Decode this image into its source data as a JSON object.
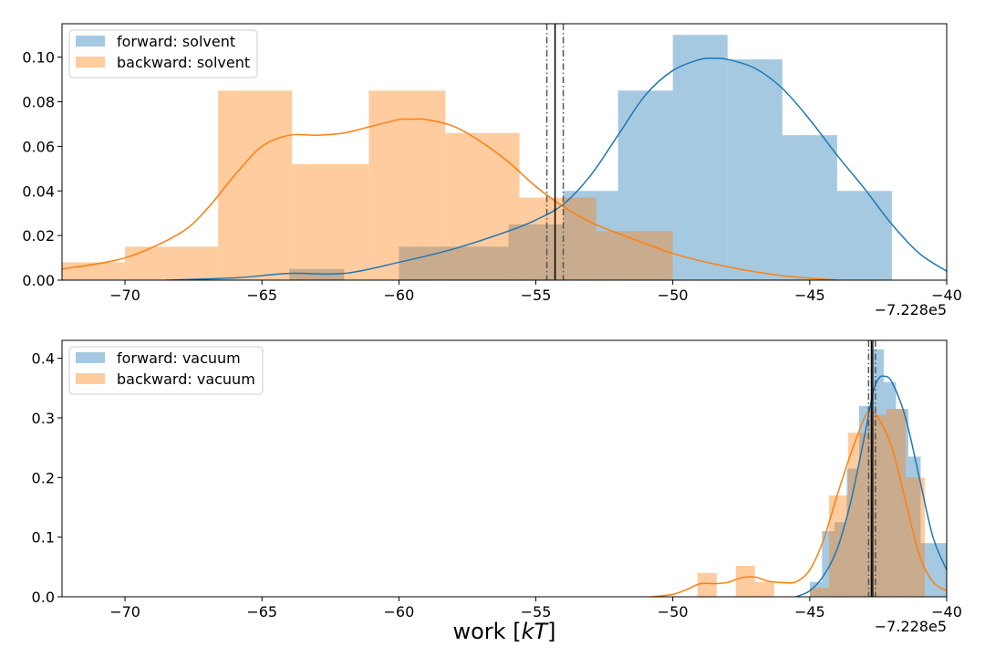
{
  "xlabel": "work [kT]",
  "chart_data": [
    {
      "type": "histogram",
      "xlim": [
        -72.3,
        -40
      ],
      "ylim": [
        0,
        0.115
      ],
      "x_offset_label": "−7.228e5",
      "x_ticks": [
        -70,
        -65,
        -60,
        -55,
        -50,
        -45,
        -40
      ],
      "x_tick_labels": [
        "−70",
        "−65",
        "−60",
        "−55",
        "−50",
        "−45",
        "−40"
      ],
      "y_ticks": [
        0,
        0.02,
        0.04,
        0.06,
        0.08,
        0.1
      ],
      "y_tick_labels": [
        "0.00",
        "0.02",
        "0.04",
        "0.06",
        "0.08",
        "0.10"
      ],
      "legend_position": "upper-left",
      "vlines": {
        "forward_mean": -54.3,
        "backward_mean": -54.3,
        "forward_mean_ci": [
          -54.6,
          -54.0
        ],
        "backward_mean_ci": [
          -54.6,
          -54.0
        ]
      },
      "series": [
        {
          "name": "forward: solvent",
          "color": "#1f77b4",
          "hist_color": "#a6c7e1",
          "bin_edges": [
            -64.0,
            -62.0,
            -60.0,
            -58.0,
            -56.0,
            -54.0,
            -52.0,
            -50.0,
            -48.0,
            -46.0,
            -44.0,
            -42.0
          ],
          "bin_values": [
            0.005,
            0.0,
            0.015,
            0.015,
            0.025,
            0.04,
            0.085,
            0.11,
            0.099,
            0.065,
            0.04
          ],
          "kde": {
            "x": [
              -68.5,
              -66,
              -64,
              -62,
              -60,
              -58,
              -56,
              -55,
              -54,
              -53,
              -52,
              -51,
              -50,
              -49,
              -48.5,
              -48,
              -47,
              -46,
              -45,
              -44,
              -43,
              -42,
              -41,
              -40
            ],
            "y": [
              0,
              0.001,
              0.003,
              0.003,
              0.008,
              0.014,
              0.022,
              0.027,
              0.034,
              0.047,
              0.065,
              0.083,
              0.094,
              0.099,
              0.0995,
              0.099,
              0.095,
              0.086,
              0.072,
              0.056,
              0.041,
              0.025,
              0.012,
              0.004
            ]
          }
        },
        {
          "name": "backward: solvent",
          "color": "#ff7f0e",
          "hist_color": "#ffc898",
          "bin_edges": [
            -72.8,
            -70.0,
            -66.6,
            -63.9,
            -61.1,
            -58.3,
            -55.6,
            -52.8,
            -50.0
          ],
          "bin_values": [
            0.008,
            0.015,
            0.085,
            0.052,
            0.085,
            0.066,
            0.037,
            0.022
          ],
          "kde": {
            "x": [
              -72.3,
              -70,
              -68,
              -67,
              -66,
              -65,
              -64,
              -63,
              -62,
              -61,
              -60,
              -59.5,
              -59,
              -58,
              -57,
              -56,
              -55,
              -54,
              -53,
              -52,
              -50,
              -48,
              -46,
              -44
            ],
            "y": [
              0.005,
              0.01,
              0.021,
              0.032,
              0.047,
              0.06,
              0.065,
              0.065,
              0.066,
              0.069,
              0.072,
              0.0722,
              0.072,
              0.069,
              0.062,
              0.053,
              0.042,
              0.033,
              0.026,
              0.021,
              0.012,
              0.006,
              0.002,
              0
            ]
          }
        }
      ]
    },
    {
      "type": "histogram",
      "xlim": [
        -72.3,
        -40
      ],
      "ylim": [
        0,
        0.43
      ],
      "x_offset_label": "−7.228e5",
      "x_ticks": [
        -70,
        -65,
        -60,
        -55,
        -50,
        -45,
        -40
      ],
      "x_tick_labels": [
        "−70",
        "−65",
        "−60",
        "−55",
        "−50",
        "−45",
        "−40"
      ],
      "y_ticks": [
        0,
        0.1,
        0.2,
        0.3,
        0.4
      ],
      "y_tick_labels": [
        "0.0",
        "0.1",
        "0.2",
        "0.3",
        "0.4"
      ],
      "legend_position": "upper-left",
      "vlines": {
        "forward_mean": -42.75,
        "backward_mean": -42.7,
        "forward_mean_ci": [
          -42.85,
          -42.6
        ],
        "backward_mean_ci": [
          -42.85,
          -42.6
        ]
      },
      "series": [
        {
          "name": "forward: vacuum",
          "color": "#1f77b4",
          "hist_color": "#a6c7e1",
          "bin_edges": [
            -45.0,
            -44.55,
            -44.1,
            -43.65,
            -43.2,
            -42.75,
            -42.3,
            -41.85,
            -41.4,
            -40.95,
            -40.5,
            -40.0
          ],
          "bin_values": [
            0.025,
            0.11,
            0.125,
            0.215,
            0.32,
            0.415,
            0.36,
            0.315,
            0.235,
            0.09,
            0.09
          ],
          "kde": {
            "x": [
              -45.5,
              -45,
              -44.5,
              -44,
              -43.5,
              -43,
              -42.7,
              -42.5,
              -42.3,
              -42,
              -41.5,
              -41,
              -40.5,
              -40
            ],
            "y": [
              0,
              0.01,
              0.035,
              0.08,
              0.16,
              0.27,
              0.34,
              0.365,
              0.37,
              0.36,
              0.3,
              0.2,
              0.1,
              0.045
            ]
          }
        },
        {
          "name": "backward: vacuum",
          "color": "#ff7f0e",
          "hist_color": "#ffc898",
          "bin_edges": [
            -49.1,
            -48.4,
            -47.7,
            -47.0,
            -46.3,
            -45.6,
            -45.0,
            -44.3,
            -43.6,
            -42.9,
            -42.2,
            -41.5,
            -40.8
          ],
          "bin_values": [
            0.04,
            0.0,
            0.052,
            0.025,
            0.0,
            0.0,
            0.015,
            0.17,
            0.275,
            0.305,
            0.315,
            0.2
          ],
          "kde": {
            "x": [
              -50.8,
              -50,
              -49.5,
              -49,
              -48.5,
              -48,
              -47.5,
              -47,
              -46.5,
              -46,
              -45.5,
              -45,
              -44.5,
              -44,
              -43.5,
              -43,
              -42.8,
              -42.5,
              -42,
              -41.5,
              -41,
              -40.5,
              -40
            ],
            "y": [
              0,
              0.004,
              0.012,
              0.022,
              0.022,
              0.024,
              0.032,
              0.033,
              0.026,
              0.024,
              0.025,
              0.045,
              0.095,
              0.17,
              0.24,
              0.3,
              0.31,
              0.3,
              0.25,
              0.16,
              0.07,
              0.025,
              0.01
            ]
          }
        }
      ]
    }
  ]
}
